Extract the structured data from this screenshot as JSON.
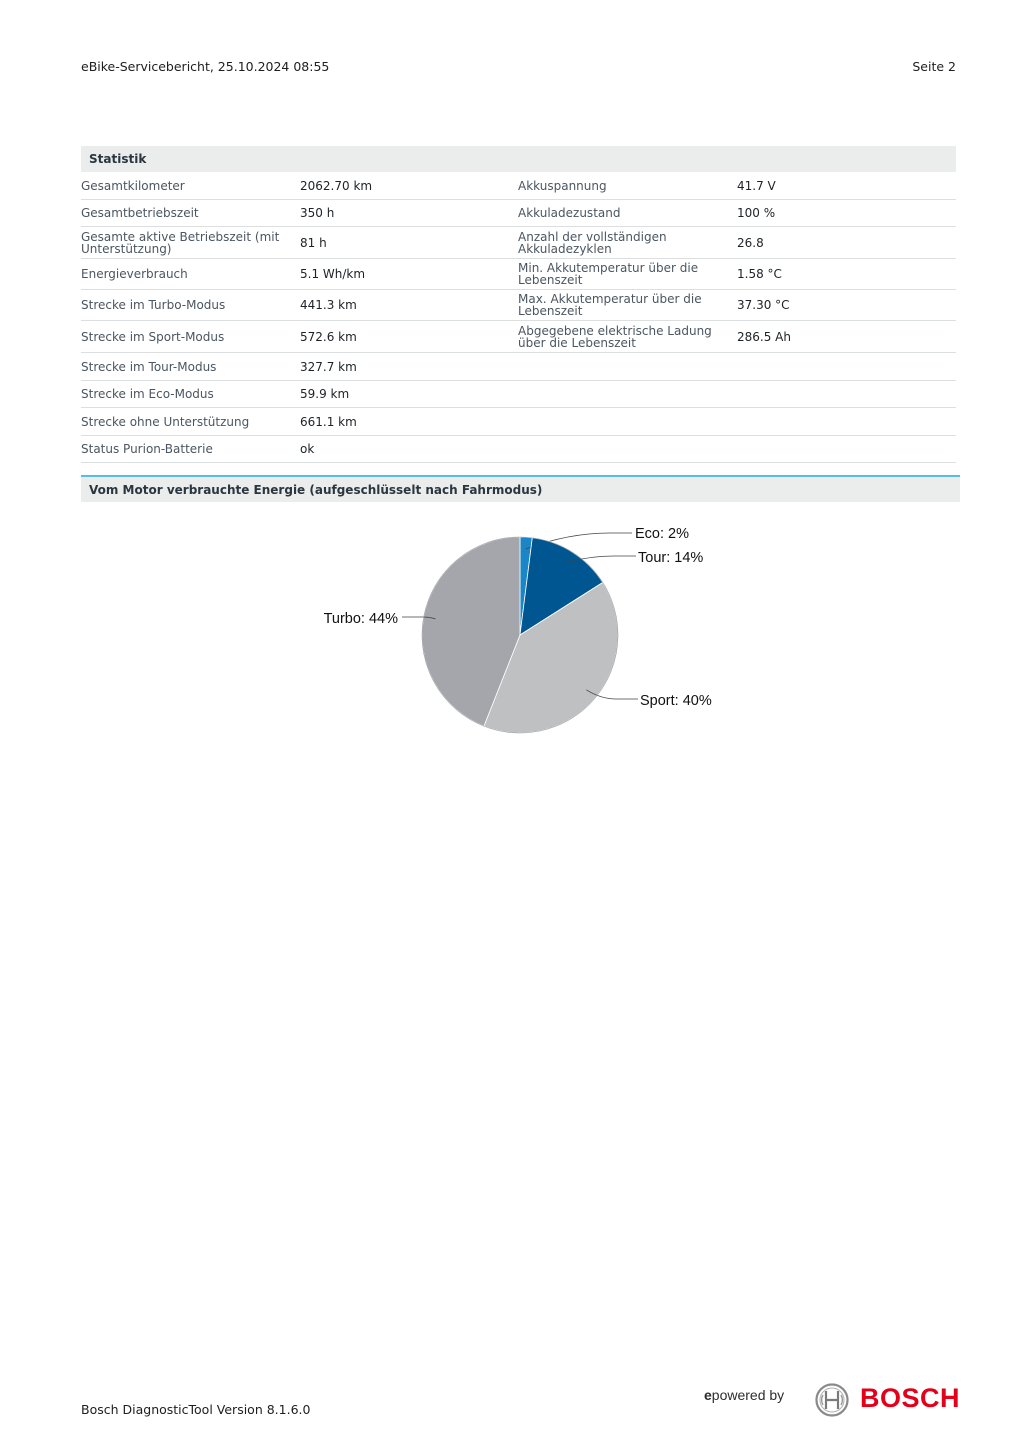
{
  "header": {
    "title": "eBike-Servicebericht, 25.10.2024 08:55",
    "page": "Seite 2"
  },
  "statistik": {
    "heading": "Statistik",
    "rows": [
      {
        "label1": "Gesamtkilometer",
        "value1": "2062.70 km",
        "label2": "Akkuspannung",
        "value2": "41.7 V"
      },
      {
        "label1": "Gesamtbetriebszeit",
        "value1": "350 h",
        "label2": "Akkuladezustand",
        "value2": "100 %"
      },
      {
        "label1": "Gesamte aktive Betriebszeit (mit Unterstützung)",
        "value1": "81 h",
        "label2": "Anzahl der vollständigen Akkuladezyklen",
        "value2": "26.8"
      },
      {
        "label1": "Energieverbrauch",
        "value1": "5.1 Wh/km",
        "label2": "Min. Akkutemperatur über die Lebenszeit",
        "value2": "1.58 °C"
      },
      {
        "label1": "Strecke im Turbo-Modus",
        "value1": "441.3 km",
        "label2": "Max. Akkutemperatur über die Lebenszeit",
        "value2": "37.30 °C"
      },
      {
        "label1": "Strecke im Sport-Modus",
        "value1": "572.6 km",
        "label2": "Abgegebene elektrische Ladung über die Lebenszeit",
        "value2": "286.5 Ah"
      },
      {
        "label1": "Strecke im Tour-Modus",
        "value1": "327.7 km",
        "label2": "",
        "value2": ""
      },
      {
        "label1": "Strecke im Eco-Modus",
        "value1": "59.9 km",
        "label2": "",
        "value2": ""
      },
      {
        "label1": "Strecke ohne Unterstützung",
        "value1": "661.1 km",
        "label2": "",
        "value2": ""
      },
      {
        "label1": "Status Purion-Batterie",
        "value1": "ok",
        "label2": "",
        "value2": ""
      }
    ]
  },
  "energy": {
    "heading": "Vom Motor verbrauchte Energie (aufgeschlüsselt nach Fahrmodus)"
  },
  "chart_data": {
    "type": "pie",
    "title": "",
    "slices": [
      {
        "label": "Eco: 2%",
        "value": 2,
        "color": "#1a86c8"
      },
      {
        "label": "Tour: 14%",
        "value": 14,
        "color": "#005691"
      },
      {
        "label": "Sport: 40%",
        "value": 40,
        "color": "#bfc0c2"
      },
      {
        "label": "Turbo: 44%",
        "value": 44,
        "color": "#a4a6ab"
      }
    ],
    "start": "12 o'clock",
    "direction": "clockwise"
  },
  "footer": {
    "version": "Bosch DiagnosticTool Version 8.1.6.0",
    "powered_e": "e",
    "powered_rest": "powered by",
    "brand": "BOSCH",
    "brand_color": "#e2001a"
  }
}
